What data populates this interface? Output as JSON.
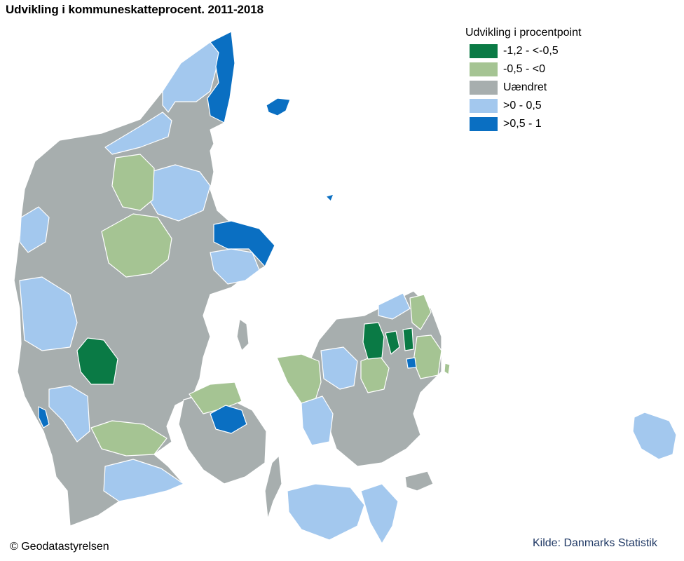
{
  "title": "Udvikling i kommuneskatteprocent. 2011-2018",
  "legend": {
    "title": "Udvikling i procentpoint",
    "items": [
      {
        "label": "-1,2 - <-0,5",
        "color": "#0a7a45"
      },
      {
        "label": "-0,5 - <0",
        "color": "#a5c493"
      },
      {
        "label": "Uændret",
        "color": "#a7aeae"
      },
      {
        "label": ">0 - 0,5",
        "color": "#a3c8ee"
      },
      {
        "label": ">0,5 - 1",
        "color": "#0a6fc2"
      }
    ]
  },
  "credit": "© Geodatastyrelsen",
  "source": "Kilde: Danmarks Statistik"
}
